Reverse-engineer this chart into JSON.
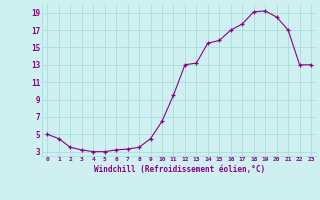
{
  "x": [
    0,
    1,
    2,
    3,
    4,
    5,
    6,
    7,
    8,
    9,
    10,
    11,
    12,
    13,
    14,
    15,
    16,
    17,
    18,
    19,
    20,
    21,
    22,
    23
  ],
  "y": [
    5,
    4.5,
    3.5,
    3.2,
    3.0,
    3.0,
    3.2,
    3.3,
    3.5,
    4.5,
    6.5,
    9.5,
    13.0,
    13.2,
    15.5,
    15.8,
    17.0,
    17.7,
    19.1,
    19.2,
    18.5,
    17.0,
    13.0,
    13.0
  ],
  "line_color": "#8B008B",
  "marker_color": "#8B008B",
  "bg_color": "#cef0f0",
  "grid_color": "#aadddd",
  "xlabel": "Windchill (Refroidissement éolien,°C)",
  "xlabel_color": "#8B008B",
  "xtick_labels": [
    "0",
    "1",
    "2",
    "3",
    "4",
    "5",
    "6",
    "7",
    "8",
    "9",
    "10",
    "11",
    "12",
    "13",
    "14",
    "15",
    "16",
    "17",
    "18",
    "19",
    "20",
    "21",
    "22",
    "23"
  ],
  "ytick_values": [
    3,
    5,
    7,
    9,
    11,
    13,
    15,
    17,
    19
  ],
  "xlim": [
    -0.5,
    23.5
  ],
  "ylim": [
    2.5,
    20.0
  ],
  "figsize": [
    3.2,
    2.0
  ],
  "dpi": 100
}
